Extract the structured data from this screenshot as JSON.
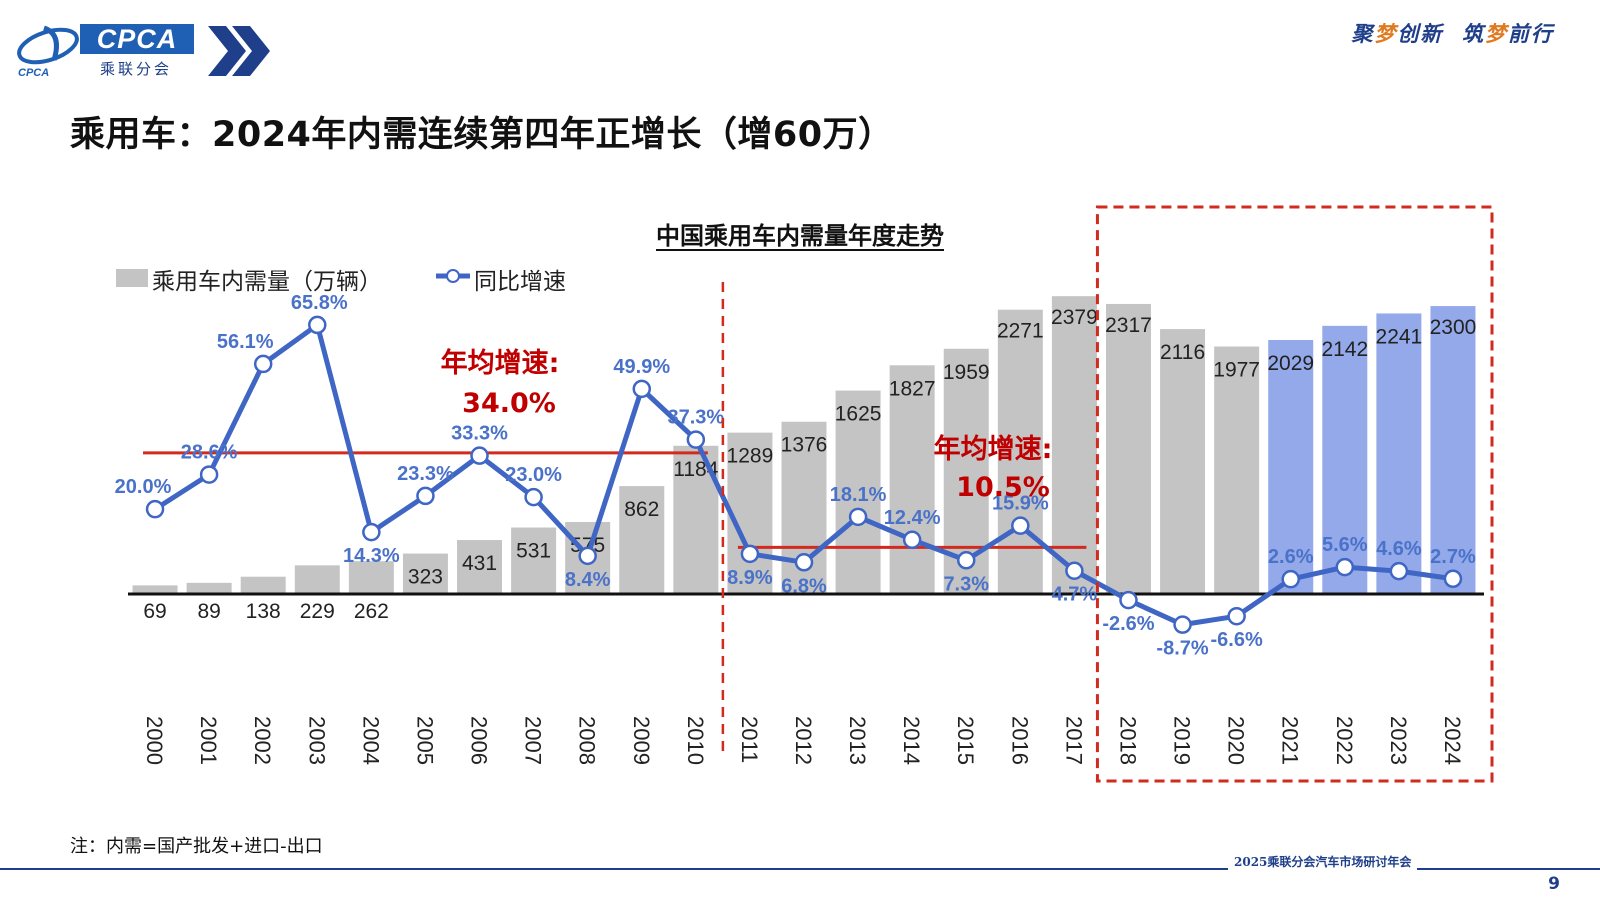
{
  "header": {
    "logo_text": "CPCA",
    "logo_cn": "乘联分会",
    "logo_small": "CPCA",
    "slogan_1a": "聚",
    "slogan_1b": "梦",
    "slogan_1c": "创新",
    "slogan_2a": "筑",
    "slogan_2b": "梦",
    "slogan_2c": "前行"
  },
  "page_title": "乘用车：2024年内需连续第四年正增长（增60万）",
  "note": "注：内需=国产批发+进口-出口",
  "footer": {
    "conference": "2025乘联分会汽车市场研讨年会",
    "page_number": "9"
  },
  "colors": {
    "bar": "#c4c4c4",
    "bar_highlight": "#93a9ea",
    "line": "#3f66c4",
    "avg_line": "#d32a1e",
    "accent": "#c00000",
    "brand": "#1f3f8a"
  },
  "chart_data": {
    "type": "bar+line",
    "title": "中国乘用车内需量年度走势",
    "legend": [
      "乘用车内需量（万辆）",
      "同比增速"
    ],
    "categories": [
      "2000",
      "2001",
      "2002",
      "2003",
      "2004",
      "2005",
      "2006",
      "2007",
      "2008",
      "2009",
      "2010",
      "2011",
      "2012",
      "2013",
      "2014",
      "2015",
      "2016",
      "2017",
      "2018",
      "2019",
      "2020",
      "2021",
      "2022",
      "2023",
      "2024"
    ],
    "series": [
      {
        "name": "乘用车内需量（万辆）",
        "type": "bar",
        "values": [
          69,
          89,
          138,
          229,
          262,
          323,
          431,
          531,
          575,
          862,
          1184,
          1289,
          1376,
          1625,
          1827,
          1959,
          2271,
          2379,
          2317,
          2116,
          1977,
          2029,
          2142,
          2241,
          2300
        ],
        "highlighted_categories": [
          "2021",
          "2022",
          "2023",
          "2024"
        ]
      },
      {
        "name": "同比增速",
        "type": "line",
        "values": [
          20.0,
          28.6,
          56.1,
          65.8,
          14.3,
          23.3,
          33.3,
          23.0,
          8.4,
          49.9,
          37.3,
          8.9,
          6.8,
          18.1,
          12.4,
          7.3,
          15.9,
          4.7,
          -2.6,
          -8.7,
          -6.6,
          2.6,
          5.6,
          4.6,
          2.7
        ],
        "labels": [
          "20.0%",
          "28.6%",
          "56.1%",
          "65.8%",
          "14.3%",
          "23.3%",
          "33.3%",
          "23.0%",
          "8.4%",
          "49.9%",
          "37.3%",
          "8.9%",
          "6.8%",
          "18.1%",
          "12.4%",
          "7.3%",
          "15.9%",
          "4.7%",
          "-2.6%",
          "-8.7%",
          "-6.6%",
          "2.6%",
          "5.6%",
          "4.6%",
          "2.7%"
        ]
      }
    ],
    "annotations": [
      {
        "label": "年均增速:",
        "value": "34.0%",
        "period": [
          "2000",
          "2010"
        ],
        "avg": 34.0
      },
      {
        "label": "年均增速:",
        "value": "10.5%",
        "period": [
          "2011",
          "2017"
        ],
        "avg": 10.5
      }
    ],
    "growth_ylim": [
      -15,
      70
    ],
    "volume_ylim": [
      0,
      2700
    ],
    "period_divider_after": "2010",
    "highlight_box": [
      "2018",
      "2024"
    ]
  }
}
